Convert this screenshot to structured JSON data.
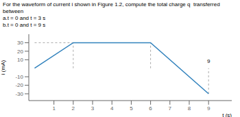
{
  "chart_data": {
    "type": "line",
    "title": "For the waveform of current i shown in Figure 1.2, compute the total charge q  transferred between",
    "subtitle": [
      "a.t = 0 and t = 3 s",
      "b.t = 0 and t = 9 s"
    ],
    "x": [
      0,
      2,
      6,
      9
    ],
    "values": [
      0,
      30,
      30,
      -30
    ],
    "x_label": "t (s)",
    "y_label": "i (mA)",
    "xlim": [
      -0.3,
      10.2
    ],
    "ylim": [
      -38,
      40
    ],
    "xticks": [
      1,
      2,
      3,
      4,
      5,
      6,
      7,
      8,
      9
    ],
    "yticks": [
      -30,
      -20,
      -10,
      10,
      20,
      30
    ],
    "grid": false,
    "dashed_lines": [
      {
        "x": [
          2,
          2
        ],
        "y": [
          0,
          30
        ]
      },
      {
        "x": [
          6,
          6
        ],
        "y": [
          0,
          30
        ]
      },
      {
        "x": [
          9,
          9
        ],
        "y": [
          -30,
          0
        ]
      },
      {
        "x": [
          0,
          2
        ],
        "y": [
          30,
          30
        ]
      }
    ],
    "annotations": [
      {
        "text": "9",
        "x": 9,
        "y": 2.5
      }
    ]
  }
}
